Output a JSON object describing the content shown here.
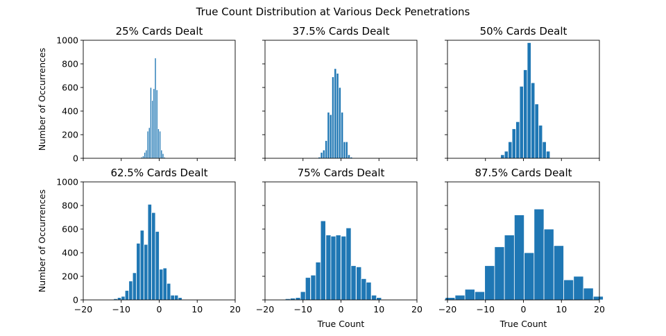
{
  "figure": {
    "title": "True Count Distribution at Various Deck Penetrations",
    "bar_color": "#1f77b4",
    "edge_color": "#ffffff"
  },
  "chart_data": [
    {
      "type": "bar",
      "title": "25% Cards Dealt",
      "xlabel": "",
      "ylabel": "Number of Occurrences",
      "xlim": [
        -20,
        20
      ],
      "ylim": [
        0,
        1000
      ],
      "xticks": [
        -20,
        -10,
        0,
        10,
        20
      ],
      "yticks": [
        0,
        200,
        400,
        600,
        800,
        1000
      ],
      "show_xtick_labels": false,
      "show_ytick_labels": true,
      "bin_width": 0.4,
      "x": [
        -5.4,
        -5.0,
        -4.6,
        -4.2,
        -3.8,
        -3.4,
        -3.0,
        -2.6,
        -2.2,
        -1.8,
        -1.4,
        -1.0,
        -0.6,
        -0.2,
        0.2,
        0.6,
        1.0,
        1.4,
        1.8,
        2.2,
        2.6,
        3.0,
        3.4,
        3.8,
        4.2,
        4.6,
        5.0
      ],
      "values": [
        3,
        5,
        10,
        20,
        50,
        70,
        230,
        260,
        600,
        490,
        590,
        850,
        580,
        250,
        230,
        70,
        40,
        10,
        5,
        3,
        2,
        2,
        2,
        1,
        1,
        1,
        1
      ]
    },
    {
      "type": "bar",
      "title": "37.5% Cards Dealt",
      "xlabel": "",
      "ylabel": "",
      "xlim": [
        -20,
        20
      ],
      "ylim": [
        0,
        1000
      ],
      "xticks": [
        -20,
        -10,
        0,
        10,
        20
      ],
      "yticks": [
        0,
        200,
        400,
        600,
        800,
        1000
      ],
      "show_xtick_labels": false,
      "show_ytick_labels": false,
      "bin_width": 0.6,
      "x": [
        -7.5,
        -6.9,
        -6.3,
        -5.7,
        -5.1,
        -4.5,
        -3.9,
        -3.3,
        -2.7,
        -2.1,
        -1.5,
        -0.9,
        -0.3,
        0.3,
        0.9,
        1.5,
        2.1,
        2.7,
        3.3,
        3.9,
        4.5,
        5.1,
        5.7,
        6.3
      ],
      "values": [
        2,
        3,
        5,
        10,
        50,
        70,
        150,
        390,
        370,
        690,
        760,
        720,
        600,
        390,
        140,
        140,
        30,
        10,
        5,
        3,
        2,
        2,
        1,
        1
      ]
    },
    {
      "type": "bar",
      "title": "50% Cards Dealt",
      "xlabel": "",
      "ylabel": "",
      "xlim": [
        -20,
        20
      ],
      "ylim": [
        0,
        1000
      ],
      "xticks": [
        -20,
        -10,
        0,
        10,
        20
      ],
      "yticks": [
        0,
        200,
        400,
        600,
        800,
        1000
      ],
      "show_xtick_labels": false,
      "show_ytick_labels": false,
      "bin_width": 1.0,
      "x": [
        -7.5,
        -6.5,
        -5.5,
        -4.5,
        -3.5,
        -2.5,
        -1.5,
        -0.5,
        0.5,
        1.5,
        2.5,
        3.5,
        4.5,
        5.5,
        6.5
      ],
      "values": [
        2,
        5,
        30,
        60,
        140,
        250,
        310,
        610,
        750,
        980,
        640,
        460,
        280,
        140,
        60
      ]
    },
    {
      "type": "bar",
      "title": "62.5% Cards Dealt",
      "xlabel": "",
      "ylabel": "Number of Occurrences",
      "xlim": [
        -20,
        20
      ],
      "ylim": [
        0,
        1000
      ],
      "xticks": [
        -20,
        -10,
        0,
        10,
        20
      ],
      "yticks": [
        0,
        200,
        400,
        600,
        800,
        1000
      ],
      "show_xtick_labels": true,
      "show_ytick_labels": true,
      "bin_width": 1.0,
      "x": [
        -14.5,
        -13.5,
        -12.5,
        -11.5,
        -10.5,
        -9.5,
        -8.5,
        -7.5,
        -6.5,
        -5.5,
        -4.5,
        -3.5,
        -2.5,
        -1.5,
        -0.5,
        0.5,
        1.5,
        2.5,
        3.5,
        4.5,
        5.5,
        6.5,
        7.5,
        8.5
      ],
      "values": [
        2,
        3,
        5,
        10,
        20,
        30,
        80,
        160,
        230,
        480,
        590,
        470,
        810,
        740,
        580,
        260,
        270,
        140,
        40,
        40,
        20,
        5,
        3,
        2
      ]
    },
    {
      "type": "bar",
      "title": "75% Cards Dealt",
      "xlabel": "True Count",
      "ylabel": "",
      "xlim": [
        -20,
        20
      ],
      "ylim": [
        0,
        1000
      ],
      "xticks": [
        -20,
        -10,
        0,
        10,
        20
      ],
      "yticks": [
        0,
        200,
        400,
        600,
        800,
        1000
      ],
      "show_xtick_labels": true,
      "show_ytick_labels": false,
      "bin_width": 1.33,
      "x": [
        -16.7,
        -15.3,
        -14.0,
        -12.7,
        -11.3,
        -10.0,
        -8.7,
        -7.3,
        -6.0,
        -4.7,
        -3.3,
        -2.0,
        -0.7,
        0.7,
        2.0,
        3.3,
        4.7,
        6.0,
        7.3,
        8.7,
        10.0,
        11.3
      ],
      "values": [
        3,
        5,
        10,
        15,
        20,
        70,
        190,
        210,
        320,
        670,
        550,
        540,
        550,
        540,
        610,
        290,
        280,
        180,
        150,
        40,
        20,
        5
      ]
    },
    {
      "type": "bar",
      "title": "87.5% Cards Dealt",
      "xlabel": "True Count",
      "ylabel": "",
      "xlim": [
        -20,
        20
      ],
      "ylim": [
        0,
        1000
      ],
      "xticks": [
        -20,
        -10,
        0,
        10,
        20
      ],
      "yticks": [
        0,
        200,
        400,
        600,
        800,
        1000
      ],
      "show_xtick_labels": true,
      "show_ytick_labels": false,
      "bin_width": 2.6,
      "x": [
        -19.3,
        -16.7,
        -14.1,
        -11.5,
        -8.9,
        -6.3,
        -3.7,
        -1.1,
        1.5,
        4.1,
        6.7,
        9.3,
        11.9,
        14.5,
        17.1,
        19.7
      ],
      "values": [
        20,
        40,
        90,
        70,
        290,
        450,
        550,
        720,
        400,
        770,
        600,
        460,
        170,
        200,
        100,
        30
      ]
    }
  ]
}
